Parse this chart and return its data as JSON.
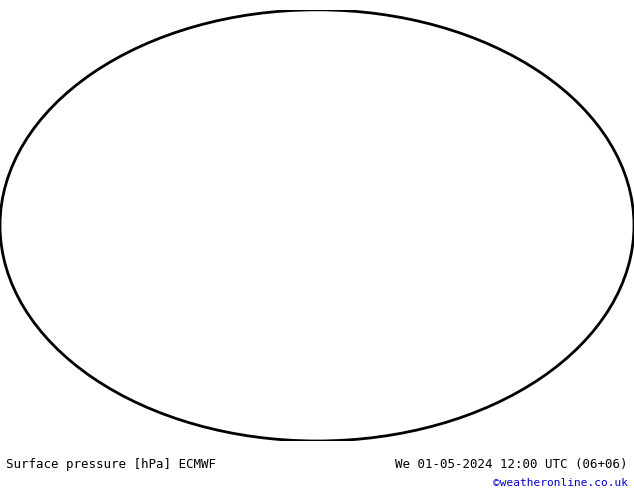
{
  "title_left": "Surface pressure [hPa] ECMWF",
  "title_right": "We 01-05-2024 12:00 UTC (06+06)",
  "copyright": "©weatheronline.co.uk",
  "background_color": "#ffffff",
  "map_background": "#f0f0f0",
  "land_color": "#c8e6b0",
  "ocean_color": "#ffffff",
  "text_color_left": "#000000",
  "text_color_right": "#000000",
  "copyright_color": "#0000cc",
  "contour_color_high": "#cc0000",
  "contour_color_low": "#0000cc",
  "contour_color_1013": "#000000",
  "label_fontsize": 7,
  "title_fontsize": 9,
  "copyright_fontsize": 8,
  "figsize": [
    6.34,
    4.9
  ],
  "dpi": 100
}
